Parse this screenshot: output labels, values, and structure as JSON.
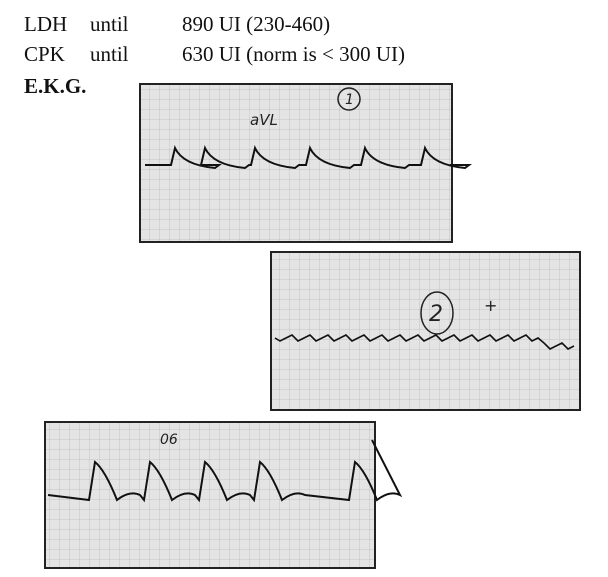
{
  "labs": [
    {
      "name": "LDH",
      "qualifier": "until",
      "value": "890 UI (230-460)"
    },
    {
      "name": "CPK",
      "qualifier": "until",
      "value": "630 UI (norm is < 300 UI)"
    }
  ],
  "section_title": "E.K.G.",
  "ecg_strips": [
    {
      "annotations": [
        "aVL",
        "1"
      ]
    },
    {
      "annotations": [
        "2",
        "+"
      ]
    },
    {
      "annotations": [
        "06"
      ]
    }
  ]
}
